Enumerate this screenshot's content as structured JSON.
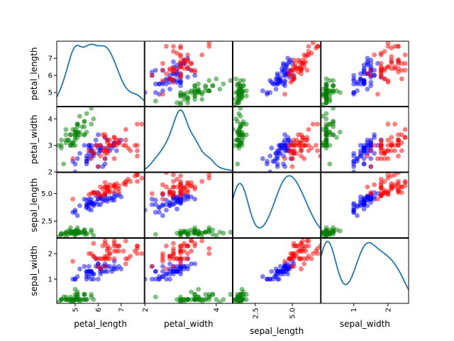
{
  "chart_data": {
    "type": "scatter",
    "title": "",
    "diagonal": "kde",
    "variables": [
      "petal_length",
      "petal_width",
      "sepal_length",
      "sepal_width"
    ],
    "class_colors": [
      "#008000",
      "#0000ff",
      "#ff0000"
    ],
    "point_alpha": 0.5,
    "kde_color": "#1f77b4",
    "ranges": {
      "petal_length": [
        4.2,
        8.0
      ],
      "petal_width": [
        2.0,
        4.45
      ],
      "sepal_length": [
        1.0,
        6.9
      ],
      "sepal_width": [
        0.05,
        2.6
      ]
    },
    "ticks": {
      "petal_length": [
        5,
        6,
        7
      ],
      "petal_width": [
        2,
        3,
        4
      ],
      "sepal_length": [
        2.5,
        5.0
      ],
      "sepal_width": [
        1,
        2
      ]
    },
    "tick_labels": {
      "petal_length": [
        "5",
        "6",
        "7"
      ],
      "petal_width": [
        "2",
        "3",
        "4"
      ],
      "sepal_length": [
        "2.5",
        "5.0"
      ],
      "sepal_width": [
        "1",
        "2"
      ]
    },
    "x_ticks": {
      "petal_length": [
        5,
        6,
        7
      ],
      "petal_width": [
        2,
        4
      ],
      "sepal_length": [
        2.5,
        5.0
      ],
      "sepal_width": [
        1,
        2
      ]
    },
    "x_tick_labels": {
      "petal_length": [
        "5",
        "6",
        "7"
      ],
      "petal_width": [
        "2",
        "4"
      ],
      "sepal_length": [
        "2.5",
        "5.0"
      ],
      "sepal_width": [
        "1",
        "2"
      ]
    },
    "series": [
      {
        "class": 0,
        "petal_length": [
          5.1,
          4.9,
          4.7,
          4.6,
          5.0,
          5.4,
          4.6,
          5.0,
          4.4,
          4.9,
          5.4,
          4.8,
          4.8,
          4.3,
          5.8,
          5.7,
          5.4,
          5.1,
          5.7,
          5.1,
          5.4,
          5.1,
          4.6,
          5.1,
          4.8,
          5.0,
          5.0,
          5.2,
          5.2,
          4.7,
          4.8,
          5.4,
          5.2,
          5.5,
          4.9,
          5.0,
          5.5,
          4.9,
          4.4,
          5.1,
          5.0,
          4.5,
          4.4,
          5.0,
          5.1,
          4.8,
          5.1,
          4.6,
          5.3,
          5.0
        ],
        "petal_width": [
          3.5,
          3.0,
          3.2,
          3.1,
          3.6,
          3.9,
          3.4,
          3.4,
          2.9,
          3.1,
          3.7,
          3.4,
          3.0,
          3.0,
          4.0,
          4.4,
          3.9,
          3.5,
          3.8,
          3.8,
          3.4,
          3.7,
          3.6,
          3.3,
          3.4,
          3.0,
          3.4,
          3.5,
          3.4,
          3.2,
          3.1,
          3.4,
          4.1,
          4.2,
          3.1,
          3.2,
          3.5,
          3.6,
          3.0,
          3.4,
          3.5,
          2.3,
          3.2,
          3.5,
          3.8,
          3.0,
          3.8,
          3.2,
          3.7,
          3.3
        ],
        "sepal_length": [
          1.4,
          1.4,
          1.3,
          1.5,
          1.4,
          1.7,
          1.4,
          1.5,
          1.4,
          1.5,
          1.5,
          1.6,
          1.4,
          1.1,
          1.2,
          1.5,
          1.3,
          1.4,
          1.7,
          1.5,
          1.7,
          1.5,
          1.0,
          1.7,
          1.9,
          1.6,
          1.6,
          1.5,
          1.4,
          1.6,
          1.6,
          1.5,
          1.5,
          1.4,
          1.5,
          1.2,
          1.3,
          1.4,
          1.3,
          1.5,
          1.3,
          1.3,
          1.3,
          1.6,
          1.9,
          1.4,
          1.6,
          1.4,
          1.5,
          1.4
        ],
        "sepal_width": [
          0.2,
          0.2,
          0.2,
          0.2,
          0.2,
          0.4,
          0.3,
          0.2,
          0.2,
          0.1,
          0.2,
          0.2,
          0.1,
          0.1,
          0.2,
          0.4,
          0.4,
          0.3,
          0.3,
          0.3,
          0.2,
          0.4,
          0.2,
          0.5,
          0.2,
          0.2,
          0.4,
          0.2,
          0.2,
          0.2,
          0.2,
          0.4,
          0.1,
          0.2,
          0.2,
          0.2,
          0.2,
          0.1,
          0.2,
          0.2,
          0.3,
          0.3,
          0.2,
          0.6,
          0.4,
          0.3,
          0.2,
          0.2,
          0.2,
          0.2
        ]
      },
      {
        "class": 1,
        "petal_length": [
          7.0,
          6.4,
          6.9,
          5.5,
          6.5,
          5.7,
          6.3,
          4.9,
          6.6,
          5.2,
          5.0,
          5.9,
          6.0,
          6.1,
          5.6,
          6.7,
          5.6,
          5.8,
          6.2,
          5.6,
          5.9,
          6.1,
          6.3,
          6.1,
          6.4,
          6.6,
          6.8,
          6.7,
          6.0,
          5.7,
          5.5,
          5.5,
          5.8,
          6.0,
          5.4,
          6.0,
          6.7,
          6.3,
          5.6,
          5.5,
          5.5,
          6.1,
          5.8,
          5.0,
          5.6,
          5.7,
          5.7,
          6.2,
          5.1,
          5.7
        ],
        "petal_width": [
          3.2,
          3.2,
          3.1,
          2.3,
          2.8,
          2.8,
          3.3,
          2.4,
          2.9,
          2.7,
          2.0,
          3.0,
          2.2,
          2.9,
          2.9,
          3.1,
          3.0,
          2.7,
          2.2,
          2.5,
          3.2,
          2.8,
          2.5,
          2.8,
          2.9,
          3.0,
          2.8,
          3.0,
          2.9,
          2.6,
          2.4,
          2.4,
          2.7,
          2.7,
          3.0,
          3.4,
          3.1,
          2.3,
          3.0,
          2.5,
          2.6,
          3.0,
          2.6,
          2.3,
          2.7,
          3.0,
          2.9,
          2.9,
          2.5,
          2.8
        ],
        "sepal_length": [
          4.7,
          4.5,
          4.9,
          4.0,
          4.6,
          4.5,
          4.7,
          3.3,
          4.6,
          3.9,
          3.5,
          4.2,
          4.0,
          4.7,
          3.6,
          4.4,
          4.5,
          4.1,
          4.5,
          3.9,
          4.8,
          4.0,
          4.9,
          4.7,
          4.3,
          4.4,
          4.8,
          5.0,
          4.5,
          3.5,
          3.8,
          3.7,
          3.9,
          5.1,
          4.5,
          4.5,
          4.7,
          4.4,
          4.1,
          4.0,
          4.4,
          4.6,
          4.0,
          3.3,
          4.2,
          4.2,
          4.2,
          4.3,
          3.0,
          4.1
        ],
        "sepal_width": [
          1.4,
          1.5,
          1.5,
          1.3,
          1.5,
          1.3,
          1.6,
          1.0,
          1.3,
          1.4,
          1.0,
          1.5,
          1.0,
          1.4,
          1.3,
          1.4,
          1.5,
          1.0,
          1.5,
          1.1,
          1.8,
          1.3,
          1.5,
          1.2,
          1.3,
          1.4,
          1.4,
          1.7,
          1.5,
          1.0,
          1.1,
          1.0,
          1.2,
          1.6,
          1.5,
          1.6,
          1.5,
          1.3,
          1.3,
          1.3,
          1.2,
          1.4,
          1.2,
          1.0,
          1.3,
          1.2,
          1.3,
          1.3,
          1.1,
          1.3
        ]
      },
      {
        "class": 2,
        "petal_length": [
          6.3,
          5.8,
          7.1,
          6.3,
          6.5,
          7.6,
          4.9,
          7.3,
          6.7,
          7.2,
          6.5,
          6.4,
          6.8,
          5.7,
          5.8,
          6.4,
          6.5,
          7.7,
          7.7,
          6.0,
          6.9,
          5.6,
          7.7,
          6.3,
          6.7,
          7.2,
          6.2,
          6.1,
          6.4,
          7.2,
          7.4,
          7.9,
          6.4,
          6.3,
          6.1,
          7.7,
          6.3,
          6.4,
          6.0,
          6.9,
          6.7,
          6.9,
          5.8,
          6.8,
          6.7,
          6.7,
          6.3,
          6.5,
          6.2,
          5.9
        ],
        "petal_width": [
          3.3,
          2.7,
          3.0,
          2.9,
          3.0,
          3.0,
          2.5,
          2.9,
          2.5,
          3.6,
          3.2,
          2.7,
          3.0,
          2.5,
          2.8,
          3.2,
          3.0,
          3.8,
          2.6,
          2.2,
          3.2,
          2.8,
          2.8,
          2.7,
          3.3,
          3.2,
          2.8,
          3.0,
          2.8,
          3.0,
          2.8,
          3.8,
          2.8,
          2.8,
          2.6,
          3.0,
          3.4,
          3.1,
          3.0,
          3.1,
          3.1,
          3.1,
          2.7,
          3.2,
          3.3,
          3.0,
          2.5,
          3.0,
          3.4,
          3.0
        ],
        "sepal_length": [
          6.0,
          5.1,
          5.9,
          5.6,
          5.8,
          6.6,
          4.5,
          6.3,
          5.8,
          6.1,
          5.1,
          5.3,
          5.5,
          5.0,
          5.1,
          5.3,
          5.5,
          6.7,
          6.9,
          5.0,
          5.7,
          4.9,
          6.7,
          4.9,
          5.7,
          6.0,
          4.8,
          4.9,
          5.6,
          5.8,
          6.1,
          6.4,
          5.6,
          5.1,
          5.6,
          6.1,
          5.6,
          5.5,
          4.8,
          5.4,
          5.6,
          5.1,
          5.1,
          5.9,
          5.7,
          5.2,
          5.0,
          5.2,
          5.4,
          5.1
        ],
        "sepal_width": [
          2.5,
          1.9,
          2.1,
          1.8,
          2.2,
          2.1,
          1.7,
          1.8,
          1.8,
          2.5,
          2.0,
          1.9,
          2.1,
          2.0,
          2.4,
          2.3,
          1.8,
          2.2,
          2.3,
          1.5,
          2.3,
          2.0,
          2.0,
          1.8,
          2.1,
          1.8,
          1.8,
          1.8,
          2.1,
          1.6,
          1.9,
          2.0,
          2.2,
          1.5,
          1.4,
          2.3,
          2.4,
          1.8,
          1.8,
          2.1,
          2.4,
          2.3,
          1.9,
          2.3,
          2.5,
          2.3,
          1.9,
          2.0,
          2.3,
          1.8
        ]
      }
    ]
  }
}
